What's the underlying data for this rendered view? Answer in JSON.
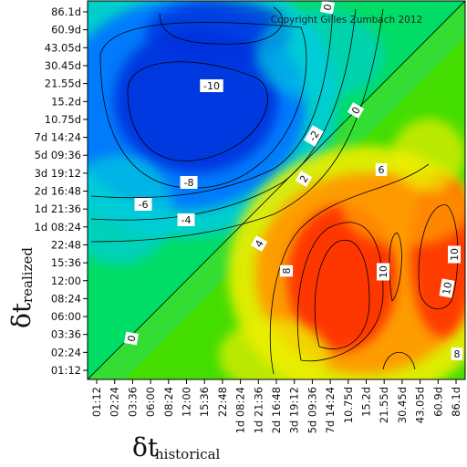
{
  "chart_data": {
    "type": "heatmap",
    "copyright": "Copyright Gilles Zumbach 2012",
    "xlabel_main": "δt",
    "xlabel_sub": "historical",
    "ylabel_main": "δt",
    "ylabel_sub": "realized",
    "x_ticks": [
      "01:12",
      "02:24",
      "03:36",
      "06:00",
      "08:24",
      "12:00",
      "15:36",
      "22:48",
      "1d 08:24",
      "1d 21:36",
      "2d 16:48",
      "3d 19:12",
      "5d 09:36",
      "7d 14:24",
      "10.75d",
      "15.2d",
      "21.55d",
      "30.45d",
      "43.05d",
      "60.9d",
      "86.1d"
    ],
    "y_ticks": [
      "01:12",
      "02:24",
      "03:36",
      "06:00",
      "08:24",
      "12:00",
      "15:36",
      "22:48",
      "1d 08:24",
      "1d 21:36",
      "2d 16:48",
      "3d 19:12",
      "5d 09:36",
      "7d 14:24",
      "10.75d",
      "15.2d",
      "21.55d",
      "30.45d",
      "43.05d",
      "60.9d",
      "86.1d"
    ],
    "contour_labels": [
      "-10",
      "-8",
      "-6",
      "-4",
      "-2",
      "0",
      "0",
      "0",
      "2",
      "4",
      "6",
      "8",
      "8",
      "10",
      "10",
      "10"
    ],
    "z_range": [
      -12,
      12
    ],
    "colormap": [
      "#0033dd",
      "#0077ff",
      "#00ccdd",
      "#00dd66",
      "#44dd00",
      "#eeee00",
      "#ff9900",
      "#ff3300",
      "#dd0000"
    ]
  }
}
